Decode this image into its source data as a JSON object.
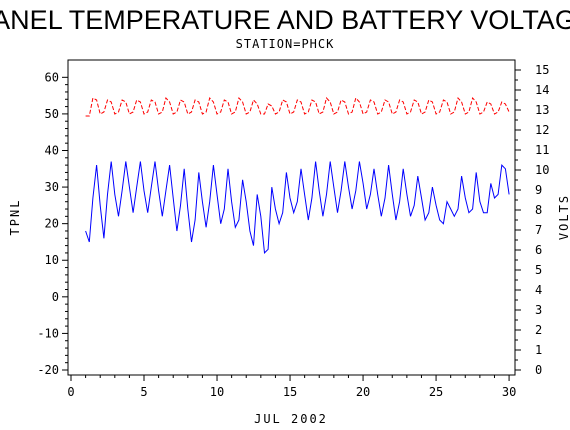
{
  "chart_data": {
    "type": "line",
    "title": "PANEL TEMPERATURE AND BATTERY VOLTAGE",
    "subtitle": "STATION=PHCK",
    "xlabel": "JUL 2002",
    "ylabel_left": "TPNL",
    "ylabel_right": "VOLTS",
    "x_ticks": [
      0,
      5,
      10,
      15,
      20,
      25,
      30
    ],
    "x_tick_labels": [
      "0",
      "5",
      "10",
      "15",
      "20",
      "25",
      "30"
    ],
    "xlim": [
      0,
      30.2
    ],
    "y_left_ticks": [
      -20,
      -10,
      0,
      10,
      20,
      30,
      40,
      50,
      60
    ],
    "y_left_tick_labels": [
      "-20",
      "-10",
      "0",
      "10",
      "20",
      "30",
      "40",
      "50",
      "60"
    ],
    "ylim_left": [
      -20,
      62
    ],
    "y_right_ticks": [
      0,
      1,
      2,
      3,
      4,
      5,
      6,
      7,
      8,
      9,
      10,
      11,
      12,
      13,
      14,
      15
    ],
    "y_right_tick_labels": [
      "0",
      "1",
      "2",
      "3",
      "4",
      "5",
      "6",
      "7",
      "8",
      "9",
      "10",
      "11",
      "12",
      "13",
      "14",
      "15"
    ],
    "ylim_right": [
      0,
      15
    ],
    "grid": false,
    "series": [
      {
        "axis": "left",
        "color": "#0000ff",
        "style": "solid",
        "x": [
          1.0,
          1.25,
          1.5,
          1.75,
          2.0,
          2.25,
          2.5,
          2.75,
          3.0,
          3.25,
          3.5,
          3.75,
          4.0,
          4.25,
          4.5,
          4.75,
          5.0,
          5.25,
          5.5,
          5.75,
          6.0,
          6.25,
          6.5,
          6.75,
          7.0,
          7.25,
          7.5,
          7.75,
          8.0,
          8.25,
          8.5,
          8.75,
          9.0,
          9.25,
          9.5,
          9.75,
          10.0,
          10.25,
          10.5,
          10.75,
          11.0,
          11.25,
          11.5,
          11.75,
          12.0,
          12.25,
          12.5,
          12.75,
          13.0,
          13.25,
          13.5,
          13.75,
          14.0,
          14.25,
          14.5,
          14.75,
          15.0,
          15.25,
          15.5,
          15.75,
          16.0,
          16.25,
          16.5,
          16.75,
          17.0,
          17.25,
          17.5,
          17.75,
          18.0,
          18.25,
          18.5,
          18.75,
          19.0,
          19.25,
          19.5,
          19.75,
          20.0,
          20.25,
          20.5,
          20.75,
          21.0,
          21.25,
          21.5,
          21.75,
          22.0,
          22.25,
          22.5,
          22.75,
          23.0,
          23.25,
          23.5,
          23.75,
          24.0,
          24.25,
          24.5,
          24.75,
          25.0,
          25.25,
          25.5,
          25.75,
          26.0,
          26.25,
          26.5,
          26.75,
          27.0,
          27.25,
          27.5,
          27.75,
          28.0,
          28.25,
          28.5,
          28.75,
          29.0,
          29.25,
          29.5,
          29.75,
          30.0
        ],
        "values": [
          18,
          15,
          27,
          36,
          25,
          16,
          28,
          37,
          28,
          22,
          29,
          37,
          30,
          23,
          30,
          37,
          29,
          23,
          30,
          37,
          29,
          22,
          29,
          36,
          27,
          18,
          25,
          35,
          24,
          15,
          21,
          34,
          26,
          19,
          26,
          36,
          28,
          20,
          24,
          35,
          26,
          19,
          21,
          32,
          26,
          18,
          14,
          28,
          22,
          12,
          13,
          30,
          24,
          20,
          23,
          34,
          27,
          23,
          26,
          35,
          28,
          21,
          27,
          37,
          29,
          22,
          28,
          37,
          30,
          23,
          29,
          37,
          30,
          24,
          29,
          37,
          31,
          24,
          28,
          35,
          28,
          22,
          27,
          36,
          28,
          21,
          26,
          35,
          28,
          22,
          25,
          33,
          27,
          21,
          23,
          30,
          25,
          21,
          20,
          26,
          24,
          22,
          24,
          33,
          27,
          23,
          24,
          34,
          26,
          23,
          23,
          31,
          27,
          28,
          36,
          35,
          28
        ],
        "name": ""
      },
      {
        "axis": "right",
        "color": "#ff0000",
        "style": "dashed",
        "x": [
          1.0,
          1.25,
          1.5,
          1.75,
          2.0,
          2.25,
          2.5,
          2.75,
          3.0,
          3.25,
          3.5,
          3.75,
          4.0,
          4.25,
          4.5,
          4.75,
          5.0,
          5.25,
          5.5,
          5.75,
          6.0,
          6.25,
          6.5,
          6.75,
          7.0,
          7.25,
          7.5,
          7.75,
          8.0,
          8.25,
          8.5,
          8.75,
          9.0,
          9.25,
          9.5,
          9.75,
          10.0,
          10.25,
          10.5,
          10.75,
          11.0,
          11.25,
          11.5,
          11.75,
          12.0,
          12.25,
          12.5,
          12.75,
          13.0,
          13.25,
          13.5,
          13.75,
          14.0,
          14.25,
          14.5,
          14.75,
          15.0,
          15.25,
          15.5,
          15.75,
          16.0,
          16.25,
          16.5,
          16.75,
          17.0,
          17.25,
          17.5,
          17.75,
          18.0,
          18.25,
          18.5,
          18.75,
          19.0,
          19.25,
          19.5,
          19.75,
          20.0,
          20.25,
          20.5,
          20.75,
          21.0,
          21.25,
          21.5,
          21.75,
          22.0,
          22.25,
          22.5,
          22.75,
          23.0,
          23.25,
          23.5,
          23.75,
          24.0,
          24.25,
          24.5,
          24.75,
          25.0,
          25.25,
          25.5,
          25.75,
          26.0,
          26.25,
          26.5,
          26.75,
          27.0,
          27.25,
          27.5,
          27.75,
          28.0,
          28.25,
          28.5,
          28.75,
          29.0,
          29.25,
          29.5,
          29.75,
          30.0
        ],
        "values": [
          12.7,
          12.7,
          13.6,
          13.5,
          12.8,
          12.9,
          13.5,
          13.4,
          12.8,
          12.9,
          13.5,
          13.4,
          12.8,
          12.9,
          13.5,
          13.4,
          12.8,
          12.9,
          13.5,
          13.4,
          12.8,
          12.9,
          13.6,
          13.4,
          12.8,
          12.9,
          13.5,
          13.4,
          12.8,
          12.9,
          13.5,
          13.4,
          12.8,
          12.9,
          13.6,
          13.4,
          12.8,
          12.9,
          13.5,
          13.4,
          12.8,
          12.9,
          13.6,
          13.4,
          12.8,
          12.9,
          13.5,
          13.3,
          12.8,
          12.8,
          13.3,
          13.2,
          12.8,
          12.9,
          13.5,
          13.4,
          12.8,
          12.9,
          13.5,
          13.4,
          12.8,
          12.9,
          13.5,
          13.4,
          12.8,
          12.9,
          13.6,
          13.4,
          12.8,
          12.9,
          13.5,
          13.4,
          12.8,
          12.9,
          13.6,
          13.4,
          12.8,
          12.9,
          13.5,
          13.4,
          12.8,
          12.9,
          13.5,
          13.4,
          12.8,
          12.9,
          13.5,
          13.4,
          12.8,
          12.9,
          13.5,
          13.4,
          12.8,
          12.9,
          13.5,
          13.4,
          12.8,
          12.9,
          13.5,
          13.4,
          12.8,
          12.9,
          13.6,
          13.4,
          12.8,
          12.9,
          13.6,
          13.4,
          12.8,
          12.9,
          13.4,
          13.3,
          12.8,
          12.9,
          13.4,
          13.3,
          12.9
        ],
        "name": ""
      }
    ]
  }
}
